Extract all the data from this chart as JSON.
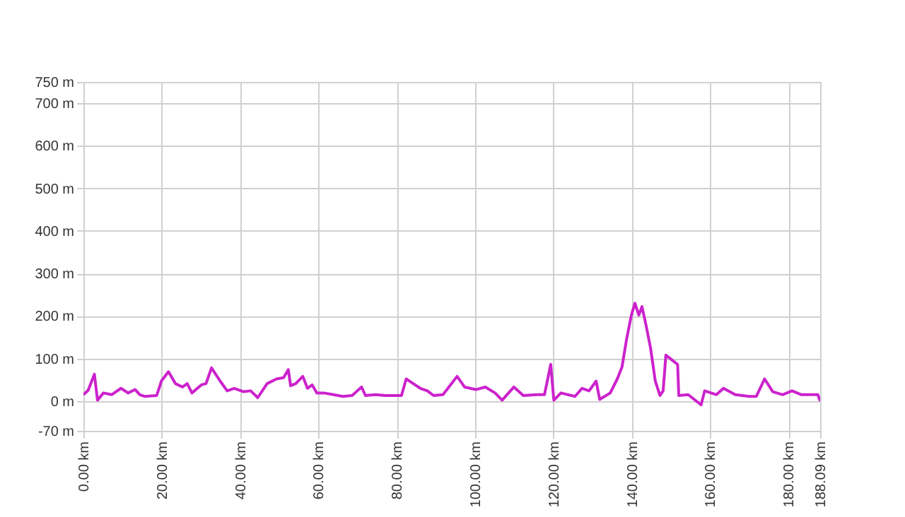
{
  "chart_data": {
    "type": "line",
    "grid": true,
    "marker": "none",
    "line_style": "solid",
    "xlim": [
      0,
      188.09
    ],
    "ylim": [
      -70,
      750
    ],
    "xticks": [
      {
        "value": 0,
        "label": "0.00 km"
      },
      {
        "value": 20,
        "label": "20.00 km"
      },
      {
        "value": 40,
        "label": "40.00 km"
      },
      {
        "value": 60,
        "label": "60.00 km"
      },
      {
        "value": 80,
        "label": "80.00 km"
      },
      {
        "value": 100,
        "label": "100.00 km"
      },
      {
        "value": 120,
        "label": "120.00 km"
      },
      {
        "value": 140,
        "label": "140.00 km"
      },
      {
        "value": 160,
        "label": "160.00 km"
      },
      {
        "value": 180,
        "label": "180.00 km"
      },
      {
        "value": 188.09,
        "label": "188.09 km"
      }
    ],
    "yticks": [
      {
        "value": -70,
        "label": "-70 m"
      },
      {
        "value": 0,
        "label": "0 m"
      },
      {
        "value": 100,
        "label": "100 m"
      },
      {
        "value": 200,
        "label": "200 m"
      },
      {
        "value": 300,
        "label": "300 m"
      },
      {
        "value": 400,
        "label": "400 m"
      },
      {
        "value": 500,
        "label": "500 m"
      },
      {
        "value": 600,
        "label": "600 m"
      },
      {
        "value": 700,
        "label": "700 m"
      },
      {
        "value": 750,
        "label": "750 m"
      }
    ],
    "series": [
      {
        "color": "#cc22cc",
        "x": [
          0,
          1.2,
          2.8,
          3.6,
          5.1,
          7.2,
          9.6,
          11.4,
          13.2,
          14.4,
          15.6,
          18.7,
          19.9,
          21.7,
          23.5,
          25.3,
          26.5,
          27.7,
          30.1,
          31.3,
          32.7,
          34.9,
          36.7,
          38.5,
          40.9,
          42.7,
          44.5,
          46.9,
          49.3,
          51.1,
          52.3,
          52.9,
          54.2,
          56.0,
          57.2,
          58.4,
          59.6,
          61.4,
          63.8,
          66.2,
          68.6,
          71.0,
          72.0,
          74.6,
          77.0,
          79.4,
          81.2,
          82.4,
          84.2,
          86.0,
          87.8,
          89.4,
          91.8,
          95.4,
          97.3,
          100.2,
          102.6,
          105.1,
          106.9,
          109.9,
          112.3,
          115.9,
          117.7,
          119.3,
          120.1,
          121.9,
          125.5,
          127.3,
          129.1,
          130.9,
          131.8,
          134.5,
          136.3,
          137.5,
          138.7,
          139.9,
          140.8,
          141.8,
          142.6,
          143.6,
          144.8,
          146.0,
          147.2,
          148.0,
          148.7,
          150.2,
          151.7,
          152.0,
          154.4,
          157.7,
          158.6,
          161.6,
          163.4,
          166.4,
          170.0,
          171.8,
          173.9,
          176.0,
          178.5,
          180.9,
          183.3,
          187.5,
          188.09
        ],
        "values": [
          15,
          25,
          63,
          2,
          19,
          15,
          30,
          19,
          27,
          15,
          11,
          13,
          47,
          69,
          41,
          33,
          41,
          19,
          38,
          41,
          78,
          47,
          24,
          30,
          22,
          24,
          8,
          41,
          52,
          55,
          74,
          36,
          41,
          58,
          30,
          38,
          19,
          19,
          15,
          11,
          13,
          33,
          13,
          15,
          13,
          13,
          13,
          52,
          41,
          30,
          24,
          13,
          15,
          58,
          33,
          27,
          33,
          19,
          2,
          33,
          13,
          15,
          15,
          86,
          2,
          19,
          11,
          30,
          24,
          47,
          4,
          19,
          52,
          80,
          147,
          202,
          230,
          202,
          222,
          180,
          124,
          47,
          13,
          24,
          108,
          97,
          86,
          13,
          15,
          -9,
          24,
          15,
          30,
          15,
          11,
          11,
          52,
          22,
          15,
          24,
          15,
          15,
          0
        ]
      }
    ]
  }
}
